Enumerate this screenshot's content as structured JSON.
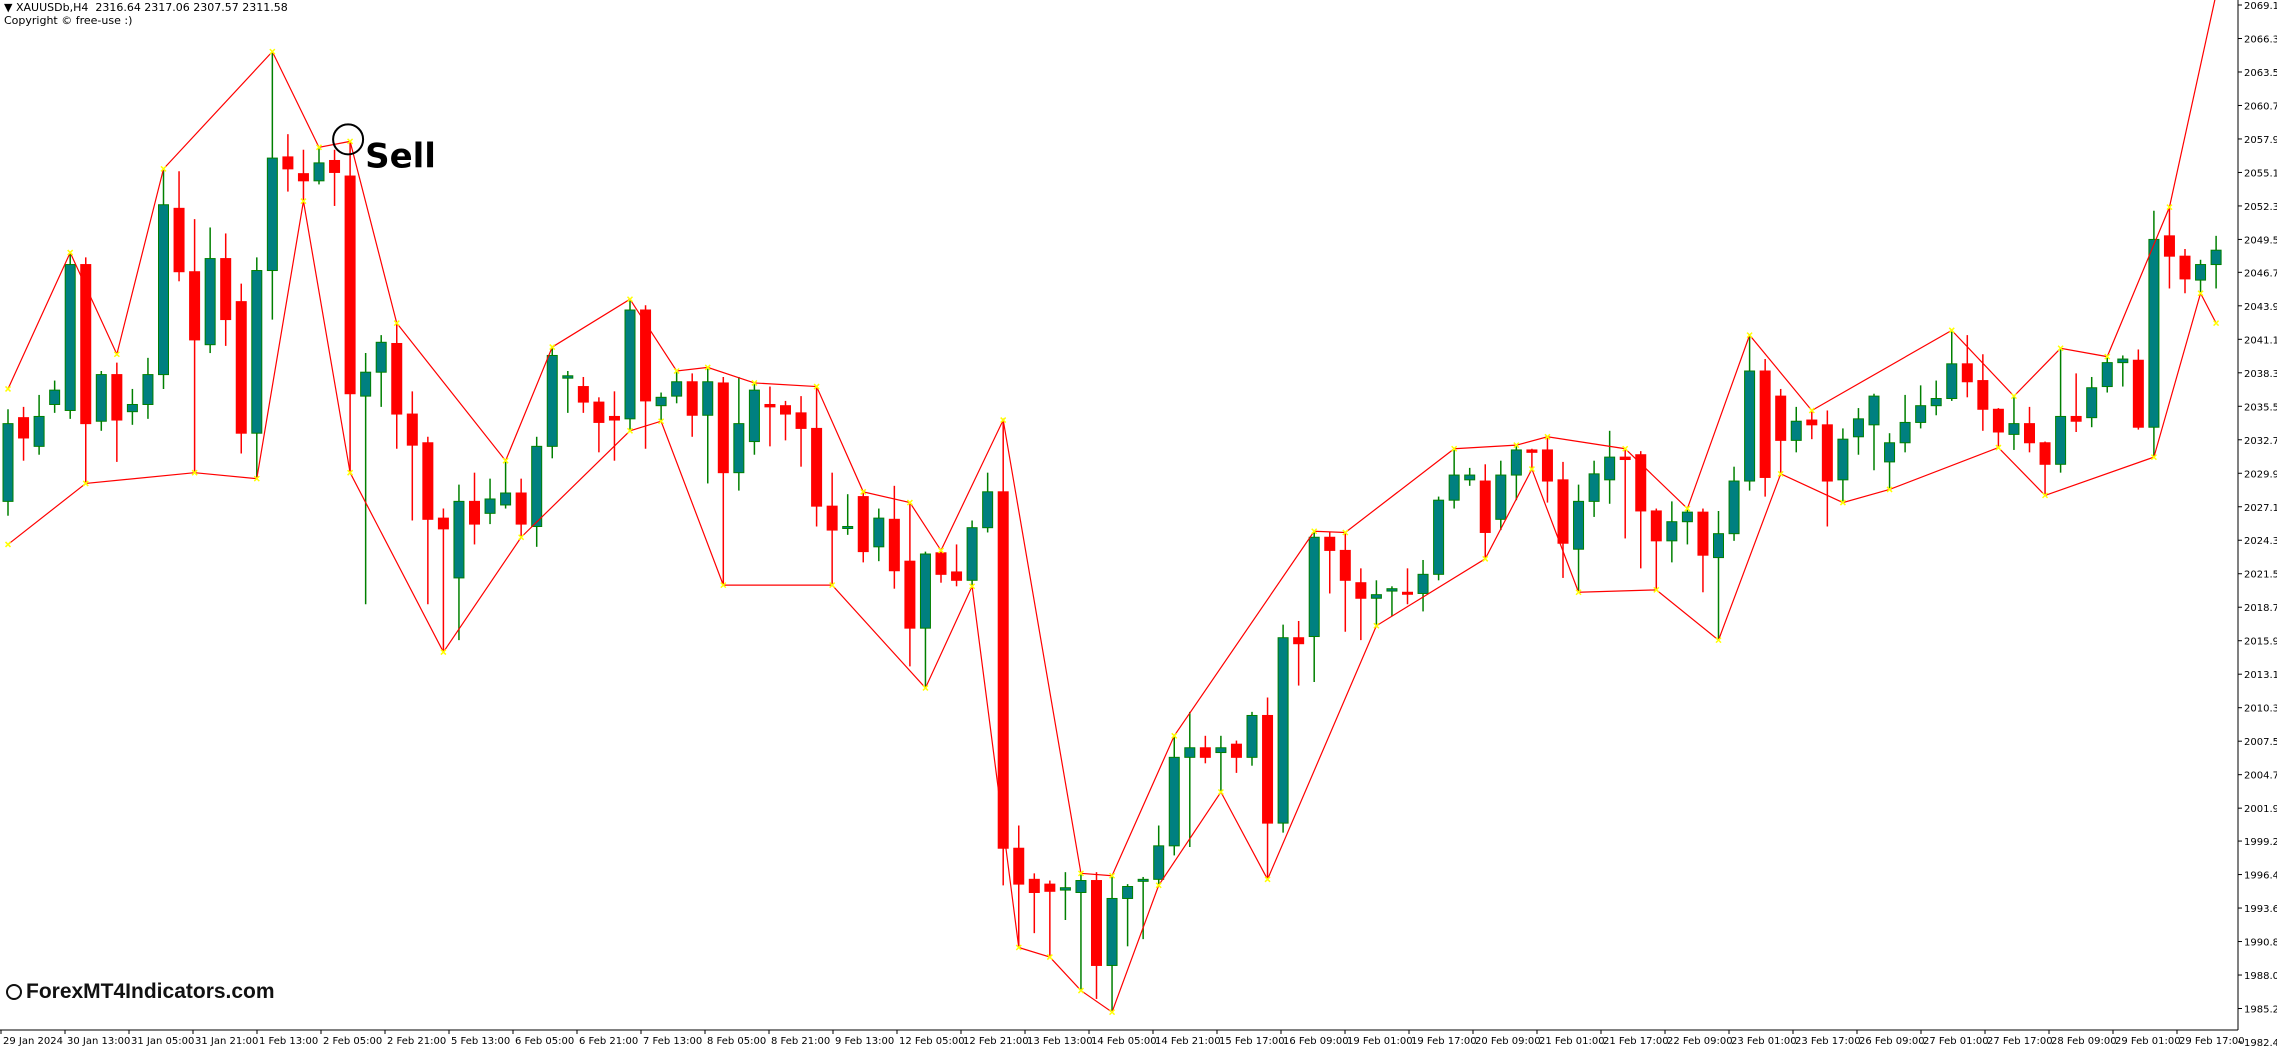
{
  "header": {
    "symbol_line": "XAUUSDb,H4  2316.64 2317.06 2307.57 2311.58",
    "copyright": "Copyright © free-use :)",
    "dropdown_icon": "triangle-down-icon"
  },
  "watermark": "ForexMT4Indicators.com",
  "colors": {
    "bull_body": "#008080",
    "bull_wick": "#008000",
    "bear": "#ff0000",
    "zigzag": "#ff0000",
    "pivot_marker": "#ffff00",
    "axis": "#000000",
    "background": "#ffffff"
  },
  "chart_data": {
    "type": "candlestick",
    "symbol": "XAUUSDb",
    "timeframe": "H4",
    "ylim": [
      1982.4,
      2069.1
    ],
    "grid": false,
    "y_ticks": [
      "2069.10",
      "2066.30",
      "2063.50",
      "2060.70",
      "2057.90",
      "2055.10",
      "2052.30",
      "2049.50",
      "2046.75",
      "2043.95",
      "2041.15",
      "2038.35",
      "2035.55",
      "2032.75",
      "2029.95",
      "2027.15",
      "2024.35",
      "2021.55",
      "2018.75",
      "2015.95",
      "2013.15",
      "2010.35",
      "2007.55",
      "2004.75",
      "2001.95",
      "1999.20",
      "1996.40",
      "1993.60",
      "1990.80",
      "1988.00",
      "1985.20",
      "1982.40"
    ],
    "x_ticks": [
      "29 Jan 2024",
      "30 Jan 13:00",
      "31 Jan 05:00",
      "31 Jan 21:00",
      "1 Feb 13:00",
      "2 Feb 05:00",
      "2 Feb 21:00",
      "5 Feb 13:00",
      "6 Feb 05:00",
      "6 Feb 21:00",
      "7 Feb 13:00",
      "8 Feb 05:00",
      "8 Feb 21:00",
      "9 Feb 13:00",
      "12 Feb 05:00",
      "12 Feb 21:00",
      "13 Feb 13:00",
      "14 Feb 05:00",
      "14 Feb 21:00",
      "15 Feb 17:00",
      "16 Feb 09:00",
      "19 Feb 01:00",
      "19 Feb 17:00",
      "20 Feb 09:00",
      "21 Feb 01:00",
      "21 Feb 17:00",
      "22 Feb 09:00",
      "23 Feb 01:00",
      "23 Feb 17:00",
      "26 Feb 09:00",
      "27 Feb 01:00",
      "27 Feb 17:00",
      "28 Feb 09:00",
      "29 Feb 01:00",
      "29 Feb 17:00"
    ],
    "ohlc_fields": [
      "open",
      "high",
      "low",
      "close"
    ],
    "candles": [
      [
        2027.6,
        2035.3,
        2026.4,
        2034.1
      ],
      [
        2034.6,
        2035.5,
        2031,
        2032.9
      ],
      [
        2032.2,
        2036.5,
        2031.5,
        2034.7
      ],
      [
        2035.7,
        2037.7,
        2035,
        2036.9
      ],
      [
        2035.2,
        2048.4,
        2034.5,
        2047.4
      ],
      [
        2047.4,
        2048,
        2029.1,
        2034.1
      ],
      [
        2034.3,
        2038.5,
        2033.5,
        2038.2
      ],
      [
        2038.2,
        2039.2,
        2030.9,
        2034.4
      ],
      [
        2035.1,
        2037,
        2034,
        2035.7
      ],
      [
        2035.7,
        2039.6,
        2034.5,
        2038.2
      ],
      [
        2038.2,
        2055.4,
        2037,
        2052.4
      ],
      [
        2052.1,
        2055.2,
        2046,
        2046.8
      ],
      [
        2046.8,
        2051.2,
        2030,
        2041.1
      ],
      [
        2040.7,
        2050.5,
        2040,
        2047.9
      ],
      [
        2047.9,
        2050,
        2040.6,
        2042.8
      ],
      [
        2044.3,
        2045.8,
        2031.6,
        2033.3
      ],
      [
        2033.3,
        2048,
        2029.5,
        2046.9
      ],
      [
        2046.9,
        2065.2,
        2042.8,
        2056.3
      ],
      [
        2056.4,
        2058.3,
        2053.5,
        2055.4
      ],
      [
        2055,
        2057,
        2052.7,
        2054.4
      ],
      [
        2054.4,
        2057.2,
        2054.1,
        2055.9
      ],
      [
        2056.1,
        2057,
        2052.3,
        2055.1
      ],
      [
        2054.8,
        2057.7,
        2030,
        2036.6
      ],
      [
        2036.4,
        2040,
        2019,
        2038.4
      ],
      [
        2038.4,
        2041.5,
        2035.5,
        2040.9
      ],
      [
        2040.8,
        2042.5,
        2032,
        2034.9
      ],
      [
        2034.9,
        2036.8,
        2026,
        2032.3
      ],
      [
        2032.5,
        2033,
        2019,
        2026.1
      ],
      [
        2026.2,
        2027,
        2015,
        2025.3
      ],
      [
        2021.2,
        2029,
        2016,
        2027.6
      ],
      [
        2027.6,
        2030,
        2024,
        2025.7
      ],
      [
        2026.6,
        2029.5,
        2025.7,
        2027.8
      ],
      [
        2027.3,
        2031,
        2027,
        2028.3
      ],
      [
        2028.3,
        2029.5,
        2024.6,
        2025.7
      ],
      [
        2025.5,
        2033,
        2023.8,
        2032.2
      ],
      [
        2032.2,
        2040.5,
        2031.2,
        2039.8
      ],
      [
        2037.9,
        2038.5,
        2035,
        2038.1
      ],
      [
        2037.2,
        2038,
        2035,
        2035.9
      ],
      [
        2035.9,
        2036.3,
        2031.7,
        2034.2
      ],
      [
        2034.7,
        2036.8,
        2031,
        2034.4
      ],
      [
        2034.5,
        2044.5,
        2033.5,
        2043.6
      ],
      [
        2043.6,
        2044,
        2032,
        2036
      ],
      [
        2035.6,
        2036.7,
        2034.3,
        2036.3
      ],
      [
        2036.4,
        2038.5,
        2035.8,
        2037.6
      ],
      [
        2037.6,
        2038.3,
        2033,
        2034.8
      ],
      [
        2034.8,
        2038.8,
        2029.1,
        2037.6
      ],
      [
        2037.5,
        2038,
        2020.6,
        2030
      ],
      [
        2030,
        2038,
        2028.5,
        2034.1
      ],
      [
        2032.6,
        2037.5,
        2031.5,
        2036.9
      ],
      [
        2035.7,
        2037.2,
        2032.2,
        2035.5
      ],
      [
        2035.6,
        2036,
        2032.7,
        2034.9
      ],
      [
        2035,
        2036.4,
        2030.5,
        2033.7
      ],
      [
        2033.7,
        2037.2,
        2025.5,
        2027.2
      ],
      [
        2027.2,
        2030,
        2020.6,
        2025.2
      ],
      [
        2025.4,
        2028.2,
        2024.8,
        2025.5
      ],
      [
        2028,
        2028.4,
        2022.5,
        2023.4
      ],
      [
        2023.8,
        2027,
        2022.6,
        2026.2
      ],
      [
        2026.1,
        2028.9,
        2020.3,
        2021.8
      ],
      [
        2022.6,
        2027.5,
        2013.8,
        2017
      ],
      [
        2017,
        2023.4,
        2012,
        2023.2
      ],
      [
        2023.3,
        2023.5,
        2020.8,
        2021.5
      ],
      [
        2021.7,
        2024,
        2020.5,
        2021
      ],
      [
        2021,
        2026,
        2020.5,
        2025.4
      ],
      [
        2025.4,
        2030,
        2025,
        2028.4
      ],
      [
        2028.4,
        2034.4,
        1995.5,
        1998.6
      ],
      [
        1998.6,
        2000.5,
        1990.3,
        1995.6
      ],
      [
        1996,
        1996.5,
        1991.5,
        1994.9
      ],
      [
        1995.6,
        1995.9,
        1989.5,
        1995
      ],
      [
        1995.1,
        1996.6,
        1992.6,
        1995.3
      ],
      [
        1994.9,
        1996.5,
        1986.7,
        1995.9
      ],
      [
        1995.9,
        1996.6,
        1986,
        1988.8
      ],
      [
        1988.8,
        1996.3,
        1984.9,
        1994.4
      ],
      [
        1994.4,
        1995.6,
        1990.4,
        1995.4
      ],
      [
        1995.9,
        1996.2,
        1991,
        1996
      ],
      [
        1996,
        2000.5,
        1995.5,
        1998.8
      ],
      [
        1998.8,
        2008,
        1998,
        2006.2
      ],
      [
        2006.2,
        2010,
        1998.7,
        2007
      ],
      [
        2007,
        2008,
        2005.7,
        2006.2
      ],
      [
        2006.6,
        2008,
        2003.3,
        2007
      ],
      [
        2007.3,
        2007.6,
        2004.9,
        2006.2
      ],
      [
        2006.2,
        2010,
        2005.5,
        2009.7
      ],
      [
        2009.7,
        2011.2,
        1996,
        2000.7
      ],
      [
        2000.7,
        2017.3,
        1999.9,
        2016.2
      ],
      [
        2016.2,
        2017.6,
        2012.2,
        2015.7
      ],
      [
        2016.3,
        2025.1,
        2012.5,
        2024.6
      ],
      [
        2024.6,
        2025,
        2019.9,
        2023.5
      ],
      [
        2023.5,
        2025,
        2016.7,
        2021
      ],
      [
        2020.8,
        2022,
        2016,
        2019.5
      ],
      [
        2019.5,
        2021,
        2017.2,
        2019.8
      ],
      [
        2020.1,
        2020.5,
        2018,
        2020.3
      ],
      [
        2020,
        2022,
        2019,
        2019.9
      ],
      [
        2019.9,
        2022.7,
        2018.4,
        2021.5
      ],
      [
        2021.5,
        2028,
        2021,
        2027.7
      ],
      [
        2027.7,
        2032,
        2027,
        2029.8
      ],
      [
        2029.4,
        2030.4,
        2028.9,
        2029.8
      ],
      [
        2029.3,
        2030.7,
        2022.8,
        2025
      ],
      [
        2026.1,
        2031,
        2025.2,
        2029.8
      ],
      [
        2029.8,
        2032.3,
        2027.7,
        2031.9
      ],
      [
        2031.9,
        2032,
        2030.3,
        2031.7
      ],
      [
        2031.9,
        2033,
        2027.5,
        2029.3
      ],
      [
        2029.4,
        2030.9,
        2021.2,
        2024.1
      ],
      [
        2023.6,
        2029,
        2020,
        2027.6
      ],
      [
        2027.6,
        2031,
        2026.3,
        2029.9
      ],
      [
        2029.4,
        2033.5,
        2027.4,
        2031.3
      ],
      [
        2031.3,
        2032,
        2024.5,
        2031.1
      ],
      [
        2031.5,
        2031.8,
        2022,
        2026.8
      ],
      [
        2026.8,
        2027,
        2020.2,
        2024.3
      ],
      [
        2024.3,
        2027.6,
        2022.5,
        2025.9
      ],
      [
        2025.9,
        2027,
        2024,
        2026.7
      ],
      [
        2026.7,
        2027,
        2020,
        2023.1
      ],
      [
        2022.9,
        2026.8,
        2016,
        2024.9
      ],
      [
        2024.9,
        2030.5,
        2024.3,
        2029.3
      ],
      [
        2029.3,
        2041.5,
        2028.5,
        2038.5
      ],
      [
        2038.5,
        2039.5,
        2028,
        2029.6
      ],
      [
        2036.4,
        2037,
        2029.9,
        2032.7
      ],
      [
        2032.7,
        2035.5,
        2031.7,
        2034.3
      ],
      [
        2034.4,
        2035.2,
        2032.8,
        2034
      ],
      [
        2034,
        2035.2,
        2025.5,
        2029.3
      ],
      [
        2029.4,
        2033.7,
        2027.5,
        2032.8
      ],
      [
        2033,
        2035.4,
        2031.5,
        2034.5
      ],
      [
        2034,
        2036.6,
        2030.2,
        2036.4
      ],
      [
        2030.9,
        2033.3,
        2028.6,
        2032.5
      ],
      [
        2032.5,
        2036.5,
        2031.7,
        2034.2
      ],
      [
        2034.2,
        2037.3,
        2033.7,
        2035.6
      ],
      [
        2035.6,
        2037.7,
        2034.8,
        2036.2
      ],
      [
        2036.2,
        2041.9,
        2036,
        2039.1
      ],
      [
        2039.1,
        2041.5,
        2036.3,
        2037.6
      ],
      [
        2037.7,
        2039.9,
        2033.5,
        2035.3
      ],
      [
        2035.3,
        2035.4,
        2032.1,
        2033.4
      ],
      [
        2033.2,
        2036.4,
        2031.9,
        2034.1
      ],
      [
        2034.1,
        2035.5,
        2031.7,
        2032.5
      ],
      [
        2032.5,
        2032.6,
        2028.1,
        2030.7
      ],
      [
        2030.7,
        2040.4,
        2030,
        2034.7
      ],
      [
        2034.7,
        2038.3,
        2033.4,
        2034.3
      ],
      [
        2034.6,
        2038,
        2033.8,
        2037.1
      ],
      [
        2037.2,
        2039.7,
        2036.7,
        2039.2
      ],
      [
        2039.2,
        2039.8,
        2037.2,
        2039.5
      ],
      [
        2039.4,
        2040.3,
        2033.6,
        2033.8
      ],
      [
        2033.8,
        2051.9,
        2031.3,
        2049.5
      ],
      [
        2049.8,
        2052.2,
        2045.4,
        2048.1
      ],
      [
        2048.1,
        2048.7,
        2045,
        2046.2
      ],
      [
        2046.1,
        2047.8,
        2045,
        2047.4
      ],
      [
        2047.4,
        2049.8,
        2045.4,
        2048.6
      ]
    ],
    "zigzag_upper": [
      [
        0,
        2037
      ],
      [
        4,
        2048.4
      ],
      [
        7,
        2039.9
      ],
      [
        10,
        2055.4
      ],
      [
        17,
        2065.2
      ],
      [
        20,
        2057.2
      ],
      [
        22,
        2057.7
      ],
      [
        25,
        2042.5
      ],
      [
        32,
        2031
      ],
      [
        35,
        2040.5
      ],
      [
        40,
        2044.5
      ],
      [
        43,
        2038.5
      ],
      [
        45,
        2038.8
      ],
      [
        48,
        2037.5
      ],
      [
        52,
        2037.2
      ],
      [
        55,
        2028.4
      ],
      [
        58,
        2027.5
      ],
      [
        60,
        2023.5
      ],
      [
        64,
        2034.4
      ],
      [
        69,
        1996.5
      ],
      [
        71,
        1996.3
      ],
      [
        75,
        2008
      ],
      [
        84,
        2025.1
      ],
      [
        86,
        2025
      ],
      [
        93,
        2032
      ],
      [
        97,
        2032.3
      ],
      [
        99,
        2033
      ],
      [
        104,
        2032
      ],
      [
        108,
        2027
      ],
      [
        112,
        2041.5
      ],
      [
        116,
        2035.2
      ],
      [
        125,
        2041.9
      ],
      [
        129,
        2036.4
      ],
      [
        132,
        2040.4
      ],
      [
        135,
        2039.7
      ],
      [
        139,
        2052.2
      ],
      [
        142,
        2070
      ]
    ],
    "zigzag_lower": [
      [
        0,
        2024
      ],
      [
        5,
        2029.1
      ],
      [
        12,
        2030
      ],
      [
        16,
        2029.5
      ],
      [
        19,
        2052.7
      ],
      [
        22,
        2030
      ],
      [
        28,
        2015
      ],
      [
        33,
        2024.6
      ],
      [
        40,
        2033.5
      ],
      [
        42,
        2034.3
      ],
      [
        46,
        2020.6
      ],
      [
        53,
        2020.6
      ],
      [
        59,
        2012
      ],
      [
        62,
        2020.5
      ],
      [
        65,
        1990.3
      ],
      [
        67,
        1989.5
      ],
      [
        69,
        1986.7
      ],
      [
        71,
        1984.9
      ],
      [
        74,
        1995.5
      ],
      [
        78,
        2003.3
      ],
      [
        81,
        1996
      ],
      [
        88,
        2017.2
      ],
      [
        95,
        2022.8
      ],
      [
        98,
        2030.3
      ],
      [
        101,
        2020
      ],
      [
        106,
        2020.2
      ],
      [
        110,
        2016
      ],
      [
        114,
        2029.9
      ],
      [
        118,
        2027.5
      ],
      [
        121,
        2028.6
      ],
      [
        128,
        2032.1
      ],
      [
        131,
        2028.1
      ],
      [
        138,
        2031.3
      ],
      [
        141,
        2045
      ],
      [
        142,
        2042.5
      ]
    ],
    "annotations": [
      {
        "text": "Sell",
        "candle": 22,
        "price": 2057.7
      }
    ]
  }
}
